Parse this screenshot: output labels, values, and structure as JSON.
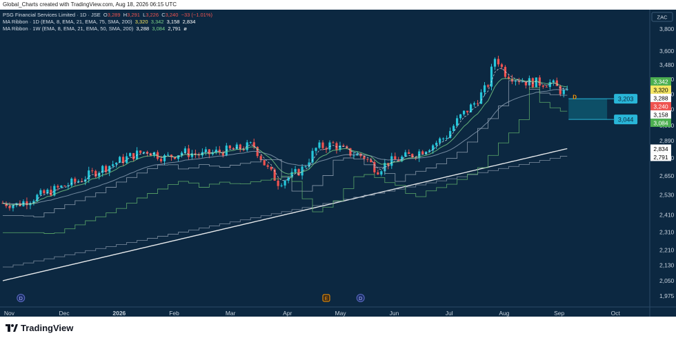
{
  "header": {
    "credit": "Global_Charts created with TradingView.com, Aug 18, 2026 06:15 UTC"
  },
  "legend": {
    "symbol": "PSG Financial Services Limited · 1D · JSE",
    "o_label": "O",
    "o_value": "3,289",
    "h_label": "H",
    "h_value": "3,291",
    "l_label": "L",
    "l_value": "3,226",
    "c_label": "C",
    "c_value": "3,240",
    "change": "−33 (−1.01%)",
    "ribbon_1d": "MA Ribbon · 1D (EMA, 8, EMA, 21, EMA, 75, SMA, 200)",
    "ribbon_1d_vals": [
      "3,320",
      "3,342",
      "3,158",
      "2,834"
    ],
    "ribbon_1w": "MA Ribbon · 1W (EMA, 8, EMA, 21, EMA, 50, SMA, 200)",
    "ribbon_1w_vals": [
      "3,288",
      "3,084",
      "2,791",
      "ø"
    ]
  },
  "currency_label": "ZAC",
  "footer": {
    "brand": "TradingView"
  },
  "colors": {
    "background": "#0c2841",
    "up": "#26c6da",
    "down": "#ef5350",
    "ema8": "#f5e663",
    "ema21": "#7bd389",
    "sma200": "#ffffff",
    "weekly_steps": "#9aa7b8",
    "zone": "#0e6f86"
  },
  "chart_data": {
    "type": "candlestick",
    "x_ticks": [
      "Nov",
      "Dec",
      "2026",
      "Feb",
      "Mar",
      "Apr",
      "May",
      "Jun",
      "Jul",
      "Aug",
      "Sep",
      "Oct"
    ],
    "y_ticks": [
      "3,800",
      "3,600",
      "3,480",
      "3,360",
      "3,240",
      "3,120",
      "3,000",
      "2,890",
      "2,770",
      "2,650",
      "2,530",
      "2,410",
      "2,310",
      "2,210",
      "2,130",
      "2,050",
      "1,975"
    ],
    "ylim": [
      1975,
      3800
    ],
    "price_tags": [
      {
        "value": 3342,
        "label": "3,342",
        "bg": "#4caf50",
        "fg": "#ffffff"
      },
      {
        "value": 3320,
        "label": "3,320",
        "bg": "#f5e663",
        "fg": "#000000"
      },
      {
        "value": 3288,
        "label": "3,288",
        "bg": "#ffffff",
        "fg": "#000000"
      },
      {
        "value": 3240,
        "label": "3,240",
        "bg": "#ef5350",
        "fg": "#ffffff"
      },
      {
        "value": 3158,
        "label": "3,158",
        "bg": "#ffffff",
        "fg": "#000000"
      },
      {
        "value": 3084,
        "label": "3,084",
        "bg": "#4caf50",
        "fg": "#ffffff"
      },
      {
        "value": 2834,
        "label": "2,834",
        "bg": "#ffffff",
        "fg": "#000000"
      },
      {
        "value": 2791,
        "label": "2,791",
        "bg": "#ffffff",
        "fg": "#000000"
      }
    ],
    "zone": {
      "top": 3203,
      "bottom": 3044,
      "top_label": "3,203",
      "bottom_label": "3,044"
    },
    "markers": [
      {
        "letter": "D",
        "where": "Nov"
      },
      {
        "letter": "E",
        "where": "Apr"
      },
      {
        "letter": "D",
        "where": "May"
      }
    ],
    "last_marker": "D",
    "anchor_points": [
      [
        0,
        2480
      ],
      [
        10,
        2470
      ],
      [
        25,
        2520
      ],
      [
        40,
        2570
      ],
      [
        55,
        2620
      ],
      [
        70,
        2690
      ],
      [
        80,
        2730
      ],
      [
        95,
        2790
      ],
      [
        105,
        2820
      ],
      [
        118,
        2770
      ],
      [
        130,
        2810
      ],
      [
        145,
        2790
      ],
      [
        158,
        2815
      ],
      [
        170,
        2830
      ],
      [
        182,
        2860
      ],
      [
        192,
        2700
      ],
      [
        200,
        2610
      ],
      [
        210,
        2650
      ],
      [
        218,
        2700
      ],
      [
        228,
        2840
      ],
      [
        240,
        2865
      ],
      [
        250,
        2810
      ],
      [
        262,
        2780
      ],
      [
        272,
        2690
      ],
      [
        280,
        2740
      ],
      [
        290,
        2770
      ],
      [
        300,
        2800
      ],
      [
        312,
        2860
      ],
      [
        322,
        2920
      ],
      [
        332,
        3060
      ],
      [
        342,
        3160
      ],
      [
        352,
        3300
      ],
      [
        358,
        3560
      ],
      [
        364,
        3420
      ],
      [
        372,
        3370
      ],
      [
        380,
        3340
      ],
      [
        390,
        3330
      ],
      [
        398,
        3330
      ],
      [
        406,
        3260
      ],
      [
        410,
        3240
      ]
    ],
    "total_bars": 470,
    "last_bar": 410
  }
}
